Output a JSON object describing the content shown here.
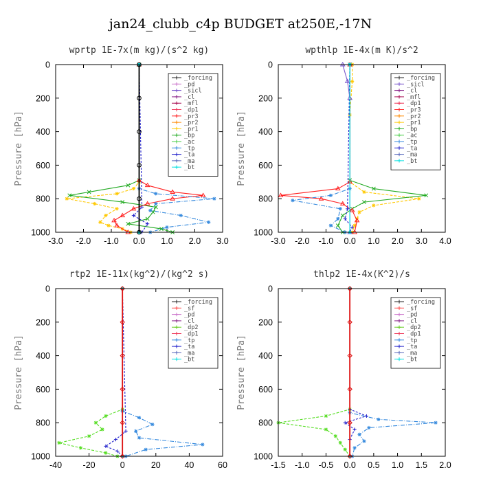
{
  "figure_title": "jan24_clubb_c4p  BUDGET at250E,-17N",
  "chart_data": [
    {
      "type": "line",
      "title": "wprtp  1E-7x(m kg)/(s^2 kg)",
      "ylabel": "Pressure [hPa]",
      "xlim": [
        -3,
        3
      ],
      "ylim": [
        1000,
        0
      ],
      "xticks": [
        "-3.0",
        "-2.0",
        "-1.0",
        "0.0",
        "1.0",
        "2.0",
        "3.0"
      ],
      "yticks": [
        "0",
        "200",
        "400",
        "600",
        "800",
        "1000"
      ],
      "xtick_values": [
        -3,
        -2,
        -1,
        0,
        1,
        2,
        3
      ],
      "ytick_values": [
        0,
        200,
        400,
        600,
        800,
        1000
      ],
      "legend_position": "top-right",
      "legend": [
        "_forcing",
        "_pd",
        "_sicl",
        "_cl",
        "_mfl",
        "_dp1",
        "_pr3",
        "_pr2",
        "_pr1",
        "_bp",
        "_ac",
        "_tp",
        "_ta",
        "_ma",
        "_bt"
      ],
      "series": [
        {
          "name": "_pr1",
          "color": "#ffc800",
          "dash": "4,2",
          "marker": "star",
          "y": [
            0,
            700,
            740,
            770,
            800,
            830,
            860,
            900,
            940,
            960,
            980,
            1000
          ],
          "x": [
            0,
            0,
            -0.2,
            -0.8,
            -2.6,
            -1.6,
            -0.8,
            -1.2,
            -1.4,
            -1.1,
            -0.6,
            -0.3
          ]
        },
        {
          "name": "_bp",
          "color": "#22aa22",
          "dash": "",
          "marker": "x",
          "y": [
            0,
            690,
            720,
            760,
            780,
            820,
            850,
            880,
            920,
            950,
            980,
            1000
          ],
          "x": [
            0,
            0,
            -0.4,
            -1.8,
            -2.5,
            -0.6,
            0.6,
            0.5,
            0.3,
            -0.4,
            0.8,
            1.2
          ]
        },
        {
          "name": "_pr3",
          "color": "#ff2020",
          "dash": "",
          "marker": "tri",
          "y": [
            0,
            690,
            720,
            760,
            780,
            800,
            830,
            860,
            900,
            930,
            960,
            1000
          ],
          "x": [
            0,
            0,
            0.3,
            1.2,
            2.3,
            1.2,
            0.3,
            -0.2,
            -0.6,
            -0.9,
            -0.8,
            -0.4
          ]
        },
        {
          "name": "_tp",
          "color": "#3388dd",
          "dash": "6,2,1,2",
          "marker": "star",
          "y": [
            0,
            740,
            770,
            800,
            830,
            870,
            900,
            940,
            970,
            1000
          ],
          "x": [
            0,
            0,
            0.6,
            2.7,
            0.6,
            0.4,
            1.5,
            2.5,
            1.0,
            0.4
          ]
        },
        {
          "name": "_ta",
          "color": "#2222cc",
          "dash": "3,2",
          "marker": "plus",
          "y": [
            0,
            850,
            900,
            950,
            1000
          ],
          "x": [
            0,
            0.1,
            -0.2,
            0.3,
            0.1
          ]
        },
        {
          "name": "_bt",
          "color": "#00e0e0",
          "dash": "",
          "marker": "dot",
          "y": [
            0,
            1000
          ],
          "x": [
            0,
            0
          ]
        },
        {
          "name": "_forcing",
          "color": "#000000",
          "dash": "",
          "marker": "circle",
          "y": [
            0,
            200,
            400,
            600,
            800,
            1000
          ],
          "x": [
            0,
            0,
            0,
            0,
            0,
            0
          ]
        }
      ]
    },
    {
      "type": "line",
      "title": "wpthlp  1E-4x(m K)/s^2",
      "ylabel": "Pressure [hPa]",
      "xlim": [
        -3,
        4
      ],
      "ylim": [
        1000,
        0
      ],
      "xticks": [
        "-3.0",
        "-2.0",
        "-1.0",
        "0.0",
        "1.0",
        "2.0",
        "3.0",
        "4.0"
      ],
      "yticks": [
        "0",
        "200",
        "400",
        "600",
        "800",
        "1000"
      ],
      "xtick_values": [
        -3,
        -2,
        -1,
        0,
        1,
        2,
        3,
        4
      ],
      "ytick_values": [
        0,
        200,
        400,
        600,
        800,
        1000
      ],
      "legend_position": "top-right",
      "legend": [
        "_forcing",
        "_sicl",
        "_cl",
        "_mfl",
        "_dp1",
        "_pr3",
        "_pr2",
        "_pr1",
        "_bp",
        "_ac",
        "_tp",
        "_ta",
        "_ma",
        "_bt"
      ],
      "series": [
        {
          "name": "_pr1",
          "color": "#ffc800",
          "dash": "4,2",
          "marker": "star",
          "y": [
            0,
            100,
            300,
            700,
            760,
            800,
            840,
            880,
            920,
            960,
            1000
          ],
          "x": [
            0.1,
            0.1,
            0,
            0,
            0.6,
            2.9,
            1.0,
            0.4,
            0.3,
            0.2,
            0.1
          ]
        },
        {
          "name": "_bp",
          "color": "#22aa22",
          "dash": "",
          "marker": "x",
          "y": [
            0,
            690,
            740,
            780,
            820,
            860,
            900,
            960,
            1000
          ],
          "x": [
            0,
            0,
            1.0,
            3.2,
            0.6,
            0.1,
            -0.3,
            -0.5,
            -0.3
          ]
        },
        {
          "name": "_pr3",
          "color": "#ff2020",
          "dash": "",
          "marker": "tri",
          "y": [
            0,
            700,
            740,
            780,
            800,
            830,
            870,
            930,
            1000
          ],
          "x": [
            0,
            0,
            -0.5,
            -2.9,
            -1.2,
            -0.3,
            0.1,
            0.3,
            0.2
          ]
        },
        {
          "name": "_tp",
          "color": "#3388dd",
          "dash": "6,2,1,2",
          "marker": "star",
          "y": [
            0,
            740,
            780,
            810,
            860,
            920,
            960,
            1000
          ],
          "x": [
            0,
            0,
            -0.8,
            -2.4,
            -0.4,
            -0.5,
            -0.8,
            -0.2
          ]
        },
        {
          "name": "_ta",
          "color": "#2222cc",
          "dash": "3,2",
          "marker": "plus",
          "y": [
            0,
            860,
            920,
            970,
            1000
          ],
          "x": [
            0,
            -0.1,
            -0.2,
            0.1,
            0
          ]
        },
        {
          "name": "_sicl",
          "color": "#7755cc",
          "dash": "",
          "marker": "tri",
          "y": [
            0,
            100,
            200,
            1000
          ],
          "x": [
            -0.3,
            -0.1,
            0,
            0
          ]
        },
        {
          "name": "_bt",
          "color": "#00e0e0",
          "dash": "",
          "marker": "dot",
          "y": [
            0,
            1000
          ],
          "x": [
            0,
            0
          ]
        }
      ]
    },
    {
      "type": "line",
      "title": "rtp2  1E-11x(kg^2)/(kg^2 s)",
      "ylabel": "Pressure [hPa]",
      "xlim": [
        -40,
        60
      ],
      "ylim": [
        1000,
        0
      ],
      "xticks": [
        "-40",
        "-20",
        "0",
        "20",
        "40",
        "60"
      ],
      "yticks": [
        "0",
        "200",
        "400",
        "600",
        "800",
        "1000"
      ],
      "xtick_values": [
        -40,
        -20,
        0,
        20,
        40,
        60
      ],
      "ytick_values": [
        0,
        200,
        400,
        600,
        800,
        1000
      ],
      "legend_position": "top-right",
      "legend": [
        "_forcing",
        "_sf",
        "_pd",
        "_cl",
        "_dp2",
        "_dp1",
        "_tp",
        "_ta",
        "_ma",
        "_bt"
      ],
      "series": [
        {
          "name": "_dp1",
          "color": "#55dd22",
          "dash": "4,2",
          "marker": "star",
          "y": [
            0,
            720,
            760,
            800,
            840,
            880,
            920,
            950,
            980,
            1000
          ],
          "x": [
            0,
            0,
            -10,
            -16,
            -12,
            -20,
            -38,
            -25,
            -10,
            -3
          ]
        },
        {
          "name": "_tp",
          "color": "#3388dd",
          "dash": "6,2,1,2",
          "marker": "star",
          "y": [
            0,
            730,
            770,
            810,
            850,
            890,
            930,
            960,
            1000
          ],
          "x": [
            0,
            0,
            10,
            18,
            8,
            10,
            48,
            14,
            2
          ]
        },
        {
          "name": "_ta",
          "color": "#2222cc",
          "dash": "3,2",
          "marker": "plus",
          "y": [
            0,
            850,
            900,
            940,
            970,
            1000
          ],
          "x": [
            0,
            2,
            -4,
            -10,
            -3,
            0
          ]
        },
        {
          "name": "_bt",
          "color": "#00e0e0",
          "dash": "",
          "marker": "dot",
          "y": [
            0,
            1000
          ],
          "x": [
            0,
            0
          ]
        },
        {
          "name": "_forcing",
          "color": "#dd1111",
          "dash": "",
          "marker": "diamond",
          "y": [
            0,
            200,
            400,
            600,
            800,
            1000
          ],
          "x": [
            0,
            0,
            0,
            0,
            0,
            0
          ]
        }
      ]
    },
    {
      "type": "line",
      "title": "thlp2  1E-4x(K^2)/s",
      "ylabel": "Pressure [hPa]",
      "xlim": [
        -1.5,
        2.0
      ],
      "ylim": [
        1000,
        0
      ],
      "xticks": [
        "-1.5",
        "-1.0",
        "-0.5",
        "0.0",
        "0.5",
        "1.0",
        "1.5",
        "2.0"
      ],
      "yticks": [
        "0",
        "200",
        "400",
        "600",
        "800",
        "1000"
      ],
      "xtick_values": [
        -1.5,
        -1,
        -0.5,
        0,
        0.5,
        1,
        1.5,
        2
      ],
      "ytick_values": [
        0,
        200,
        400,
        600,
        800,
        1000
      ],
      "legend_position": "top-right",
      "legend": [
        "_forcing",
        "_sf",
        "_pd",
        "_cl",
        "_dp2",
        "_dp1",
        "_tp",
        "_ta",
        "_ma",
        "_bt"
      ],
      "series": [
        {
          "name": "_dp1",
          "color": "#55dd22",
          "dash": "4,2",
          "marker": "star",
          "y": [
            0,
            720,
            760,
            800,
            840,
            880,
            920,
            960,
            1000
          ],
          "x": [
            0,
            0,
            -0.5,
            -1.5,
            -0.5,
            -0.3,
            -0.2,
            -0.1,
            0
          ]
        },
        {
          "name": "_tp",
          "color": "#3388dd",
          "dash": "6,2,1,2",
          "marker": "star",
          "y": [
            0,
            740,
            780,
            800,
            830,
            870,
            910,
            950,
            1000
          ],
          "x": [
            0,
            0,
            0.6,
            1.8,
            0.4,
            0.2,
            0.3,
            0.1,
            0.05
          ]
        },
        {
          "name": "_ta",
          "color": "#2222cc",
          "dash": "3,2",
          "marker": "plus",
          "y": [
            0,
            720,
            760,
            800,
            840,
            900,
            1000
          ],
          "x": [
            0,
            0,
            0.35,
            -0.1,
            0.1,
            0,
            0
          ]
        },
        {
          "name": "_bt",
          "color": "#00e0e0",
          "dash": "",
          "marker": "dot",
          "y": [
            0,
            1000
          ],
          "x": [
            0,
            0
          ]
        },
        {
          "name": "_forcing",
          "color": "#dd1111",
          "dash": "",
          "marker": "diamond",
          "y": [
            0,
            200,
            400,
            600,
            800,
            1000
          ],
          "x": [
            0,
            0,
            0,
            0,
            0,
            0
          ]
        }
      ]
    }
  ],
  "legend_colors": {
    "_forcing": "#222222",
    "_pd": "#cc77cc",
    "_sicl": "#7755cc",
    "_cl": "#882288",
    "_mfl": "#aa1155",
    "_dp1": "#ee3355",
    "_pr3": "#ff2020",
    "_pr2": "#ff8800",
    "_pr1": "#ffc800",
    "_bp": "#22aa22",
    "_ac": "#44cc44",
    "_tp": "#3388dd",
    "_ta": "#2222cc",
    "_ma": "#5566bb",
    "_bt": "#00e0e0",
    "_sf": "#ff4444",
    "_dp2": "#66cc22"
  }
}
